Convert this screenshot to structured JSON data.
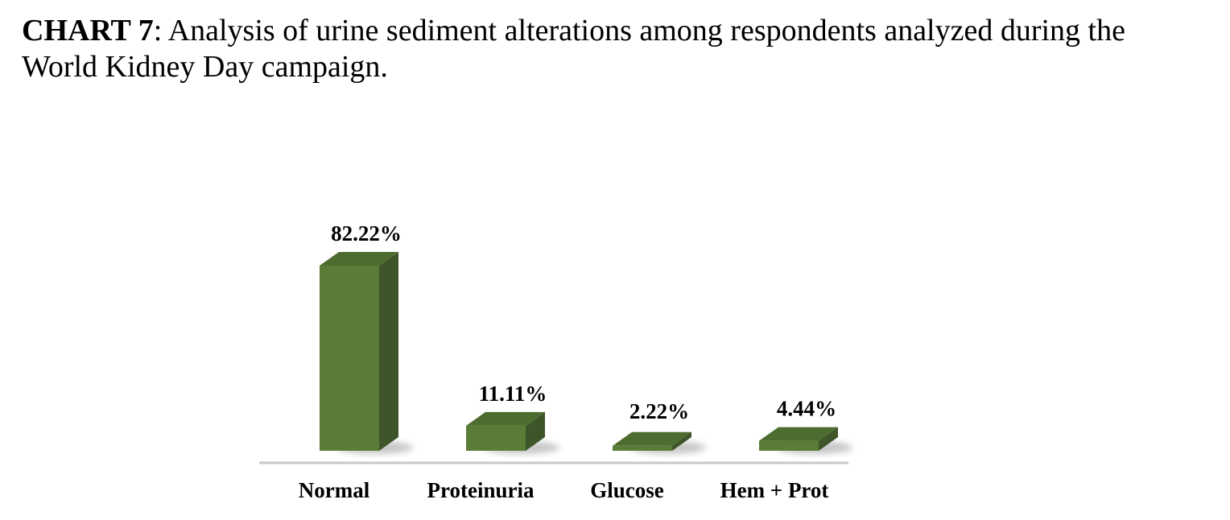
{
  "caption": {
    "label": "CHART 7",
    "text": ": Analysis of urine sediment alterations among respondents analyzed during the World Kidney Day campaign."
  },
  "chart_data": {
    "type": "bar",
    "categories": [
      "Normal",
      "Proteinuria",
      "Glucose",
      "Hem + Prot"
    ],
    "values": [
      82.22,
      11.11,
      2.22,
      4.44
    ],
    "value_labels": [
      "82.22%",
      "11.11%",
      "2.22%",
      "4.44%"
    ],
    "grid": false,
    "legend": "none",
    "bar_color": "#5a7c38",
    "bar_side_color": "#3d5528",
    "bar_top_color": "#4d6c30",
    "axis_color": "#c8c8c8"
  }
}
